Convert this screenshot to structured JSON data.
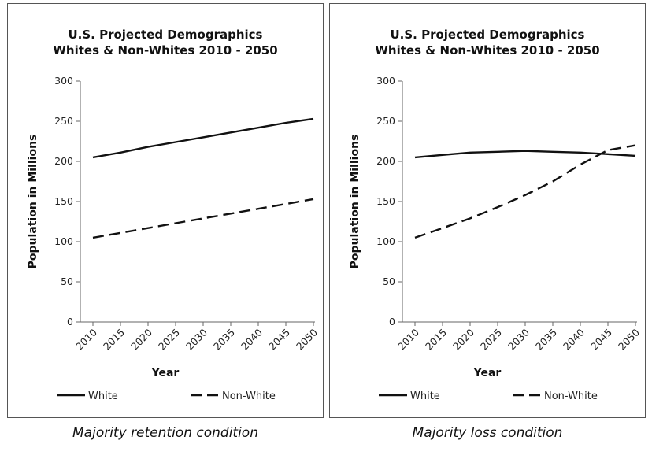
{
  "chart_data": [
    {
      "type": "line",
      "title_lines": [
        "U.S. Projected Demographics",
        "Whites & Non-Whites 2010 - 2050"
      ],
      "xlabel": "Year",
      "ylabel": "Population in Millions",
      "categories": [
        "2010",
        "2015",
        "2020",
        "2025",
        "2030",
        "2035",
        "2040",
        "2045",
        "2050"
      ],
      "ylim": [
        0,
        300
      ],
      "yticks": [
        0,
        50,
        100,
        150,
        200,
        250,
        300
      ],
      "grid": false,
      "legend_position": "bottom",
      "series": [
        {
          "name": "White",
          "style": "solid",
          "values": [
            205,
            211,
            218,
            224,
            230,
            236,
            242,
            248,
            253
          ]
        },
        {
          "name": "Non-White",
          "style": "dashed",
          "values": [
            105,
            111,
            117,
            123,
            129,
            135,
            141,
            147,
            153
          ]
        }
      ],
      "caption": "Majority retention condition"
    },
    {
      "type": "line",
      "title_lines": [
        "U.S. Projected Demographics",
        "Whites & Non-Whites 2010 - 2050"
      ],
      "xlabel": "Year",
      "ylabel": "Population in Millions",
      "categories": [
        "2010",
        "2015",
        "2020",
        "2025",
        "2030",
        "2035",
        "2040",
        "2045",
        "2050"
      ],
      "ylim": [
        0,
        300
      ],
      "yticks": [
        0,
        50,
        100,
        150,
        200,
        250,
        300
      ],
      "grid": false,
      "legend_position": "bottom",
      "series": [
        {
          "name": "White",
          "style": "solid",
          "values": [
            205,
            208,
            211,
            212,
            213,
            212,
            211,
            209,
            207
          ]
        },
        {
          "name": "Non-White",
          "style": "dashed",
          "values": [
            105,
            117,
            129,
            143,
            158,
            175,
            196,
            214,
            220
          ]
        }
      ],
      "caption": "Majority loss condition"
    }
  ]
}
